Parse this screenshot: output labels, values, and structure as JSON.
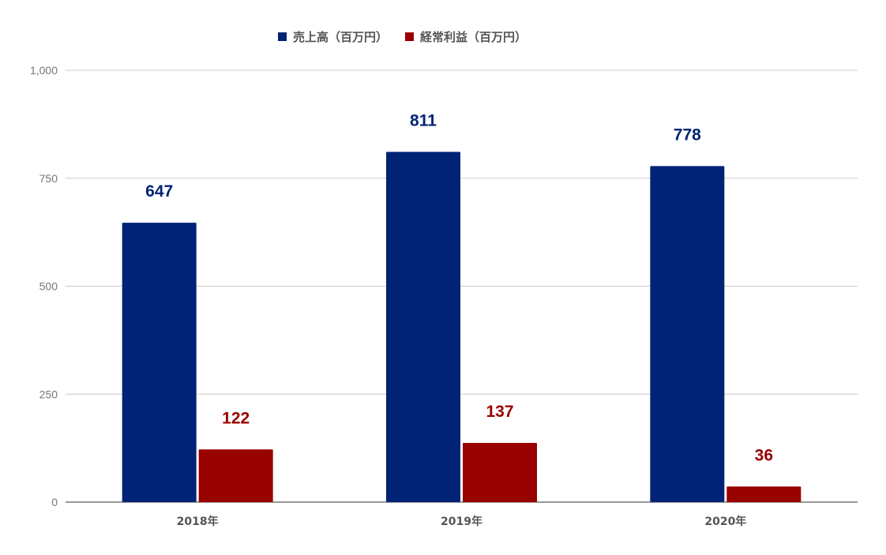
{
  "chart_data": {
    "type": "bar",
    "categories": [
      "2018年",
      "2019年",
      "2020年"
    ],
    "series": [
      {
        "name": "売上高（百万円）",
        "color": "#012375",
        "label_color": "#012375",
        "values": [
          647,
          811,
          778
        ]
      },
      {
        "name": "経常利益（百万円）",
        "color": "#990000",
        "label_color": "#990000",
        "values": [
          122,
          137,
          36
        ]
      }
    ],
    "ylim": [
      0,
      1000
    ],
    "yticks": [
      0,
      250,
      500,
      750,
      1000
    ],
    "ytick_labels": [
      "0",
      "250",
      "500",
      "750",
      "1,000"
    ],
    "grid": true,
    "legend_position": "top",
    "title": "",
    "xlabel": "",
    "ylabel": ""
  }
}
